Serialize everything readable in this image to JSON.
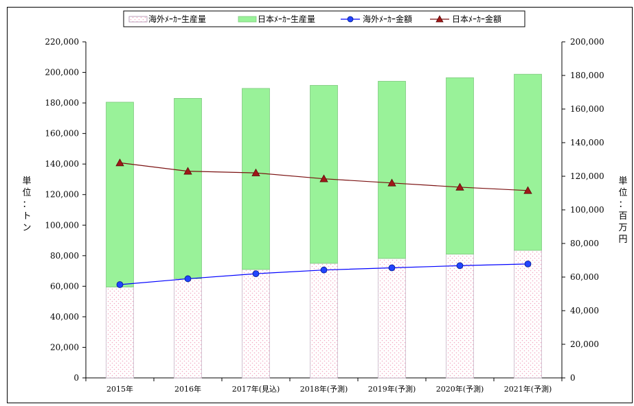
{
  "chart_data": {
    "type": "bar",
    "stacked": true,
    "categories": [
      "2015年",
      "2016年",
      "2017年(見込)",
      "2018年(予測)",
      "2019年(予測)",
      "2020年(予測)",
      "2021年(予測)"
    ],
    "series": [
      {
        "name": "海外ﾒｰｶｰ生産量",
        "type": "bar",
        "axis": "left",
        "values": [
          59500,
          65000,
          71000,
          75000,
          78200,
          81000,
          83500
        ],
        "color": "#f4a6c0",
        "fill": "dots-pink"
      },
      {
        "name": "日本ﾒｰｶｰ生産量",
        "type": "bar",
        "axis": "left",
        "values": [
          121000,
          118000,
          118500,
          116500,
          116000,
          115500,
          115300
        ],
        "color": "#99f299"
      },
      {
        "name": "海外ﾒｰｶｰ金額",
        "type": "line",
        "axis": "right",
        "values": [
          55500,
          59000,
          62000,
          64200,
          65500,
          66800,
          67800
        ],
        "color": "#0000ff",
        "marker": "circle"
      },
      {
        "name": "日本ﾒｰｶｰ金額",
        "type": "line",
        "axis": "right",
        "values": [
          128000,
          123000,
          122000,
          118500,
          116000,
          113500,
          111500
        ],
        "color": "#7a1010",
        "marker": "triangle"
      }
    ],
    "ylabel": "単位：トン",
    "y2label": "単位：百万円",
    "ylim": [
      0,
      220000
    ],
    "y2lim": [
      0,
      200000
    ],
    "yticks": [
      "0",
      "20,000",
      "40,000",
      "60,000",
      "80,000",
      "100,000",
      "120,000",
      "140,000",
      "160,000",
      "180,000",
      "200,000",
      "220,000"
    ],
    "y2ticks": [
      "0",
      "20,000",
      "40,000",
      "60,000",
      "80,000",
      "100,000",
      "120,000",
      "140,000",
      "160,000",
      "180,000",
      "200,000"
    ],
    "grid": false,
    "legend_position": "top"
  }
}
